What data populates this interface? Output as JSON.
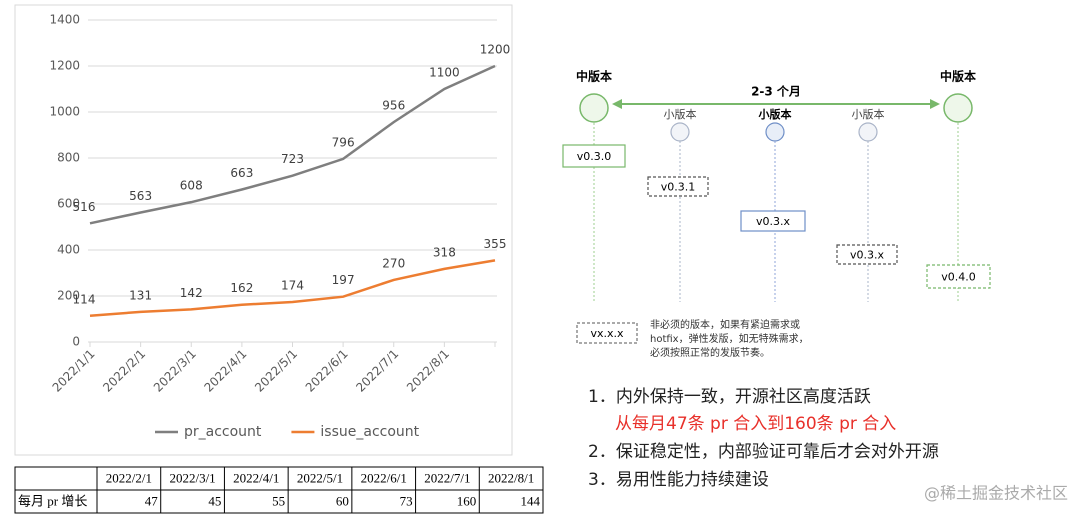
{
  "chart_data": {
    "type": "line",
    "categories": [
      "2022/1/1",
      "2022/2/1",
      "2022/3/1",
      "2022/4/1",
      "2022/5/1",
      "2022/6/1",
      "2022/7/1",
      "2022/8/1",
      null
    ],
    "series": [
      {
        "name": "pr_account",
        "color": "#7f7f7f",
        "values": [
          516,
          563,
          608,
          663,
          723,
          796,
          956,
          1100,
          1200
        ]
      },
      {
        "name": "issue_account",
        "color": "#ed7d31",
        "values": [
          114,
          131,
          142,
          162,
          174,
          197,
          270,
          318,
          355
        ]
      }
    ],
    "ylim": [
      0,
      1400
    ],
    "yticks": [
      0,
      200,
      400,
      600,
      800,
      1000,
      1200,
      1400
    ],
    "grid": true,
    "legend": "bottom"
  },
  "table": {
    "header": [
      "2022/2/1",
      "2022/3/1",
      "2022/4/1",
      "2022/5/1",
      "2022/6/1",
      "2022/7/1",
      "2022/8/1"
    ],
    "rows": [
      [
        "每月 pr 增长",
        47,
        45,
        55,
        60,
        73,
        160,
        144
      ]
    ]
  },
  "diagram": {
    "major": [
      "中版本",
      "中版本"
    ],
    "interval": "2-3 个月",
    "minor": [
      "小版本",
      "小版本",
      "小版本"
    ],
    "versions": [
      "v0.3.0",
      "v0.3.1",
      "v0.3.x",
      "v0.3.x",
      "v0.4.0"
    ],
    "legend": {
      "label": "vx.x.x",
      "note": [
        "非必须的版本，如果有紧迫需求或",
        "hotfix，弹性发版，如无特殊需求，",
        "必须按照正常的发版节奏。"
      ]
    }
  },
  "list": {
    "items": [
      "1．内外保持一致，开源社区高度活跃",
      "从每月47条  pr  合入到160条  pr  合入",
      "2．保证稳定性，内部验证可靠后才会对外开源",
      "3．易用性能力持续建设"
    ]
  },
  "watermark": "@稀土掘金技术社区"
}
